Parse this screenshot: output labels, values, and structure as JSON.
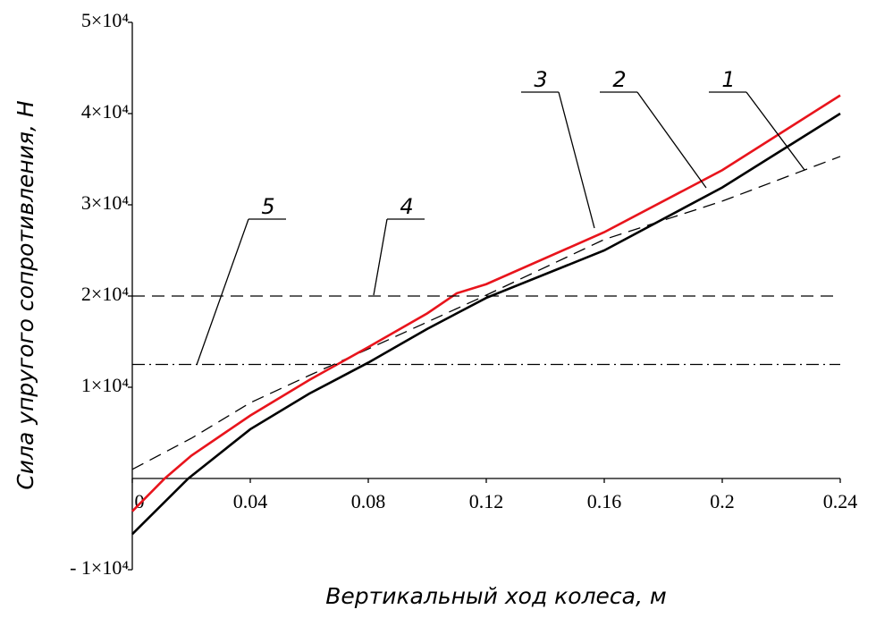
{
  "chart_data": {
    "type": "line",
    "xlabel": "Вертикальный ход колеса, м",
    "ylabel": "Сила упругого сопротивления, Н",
    "xlim": [
      0,
      0.24
    ],
    "xticks": [
      0,
      0.04,
      0.08,
      0.12,
      0.16,
      0.2,
      0.24
    ],
    "ylim": [
      -10000,
      50000
    ],
    "yticks": [
      {
        "value": -10000,
        "label": "- 1×10⁴"
      },
      {
        "value": 10000,
        "label": "1×10⁴"
      },
      {
        "value": 20000,
        "label": "2×10⁴"
      },
      {
        "value": 30000,
        "label": "3×10⁴"
      },
      {
        "value": 40000,
        "label": "4×10⁴"
      },
      {
        "value": 50000,
        "label": "5×10⁴"
      }
    ],
    "series": [
      {
        "name": "1",
        "color": "#000000",
        "style": "dashed",
        "x": [
          0,
          0.02,
          0.04,
          0.06,
          0.08,
          0.12,
          0.16,
          0.2,
          0.24
        ],
        "values": [
          1000,
          4400,
          8300,
          11300,
          14200,
          20100,
          26200,
          30400,
          35300
        ]
      },
      {
        "name": "2",
        "color": "#000000",
        "style": "solid",
        "x": [
          0,
          0.019,
          0.04,
          0.06,
          0.08,
          0.1,
          0.12,
          0.16,
          0.2,
          0.24
        ],
        "values": [
          -6100,
          0,
          5400,
          9300,
          12700,
          16400,
          19800,
          25000,
          31900,
          40000
        ]
      },
      {
        "name": "3",
        "color": "#e8141c",
        "style": "solid",
        "x": [
          0,
          0.011,
          0.02,
          0.04,
          0.06,
          0.08,
          0.1,
          0.11,
          0.12,
          0.16,
          0.2,
          0.24
        ],
        "values": [
          -3600,
          0,
          2500,
          6900,
          10800,
          14400,
          18100,
          20300,
          21300,
          27000,
          33800,
          42000
        ]
      },
      {
        "name": "4",
        "color": "#000000",
        "style": "dashed",
        "x": [
          0,
          0.24
        ],
        "values": [
          20000,
          20000
        ]
      },
      {
        "name": "5",
        "color": "#000000",
        "style": "dashdot",
        "x": [
          0,
          0.24
        ],
        "values": [
          12500,
          12500
        ]
      }
    ]
  }
}
